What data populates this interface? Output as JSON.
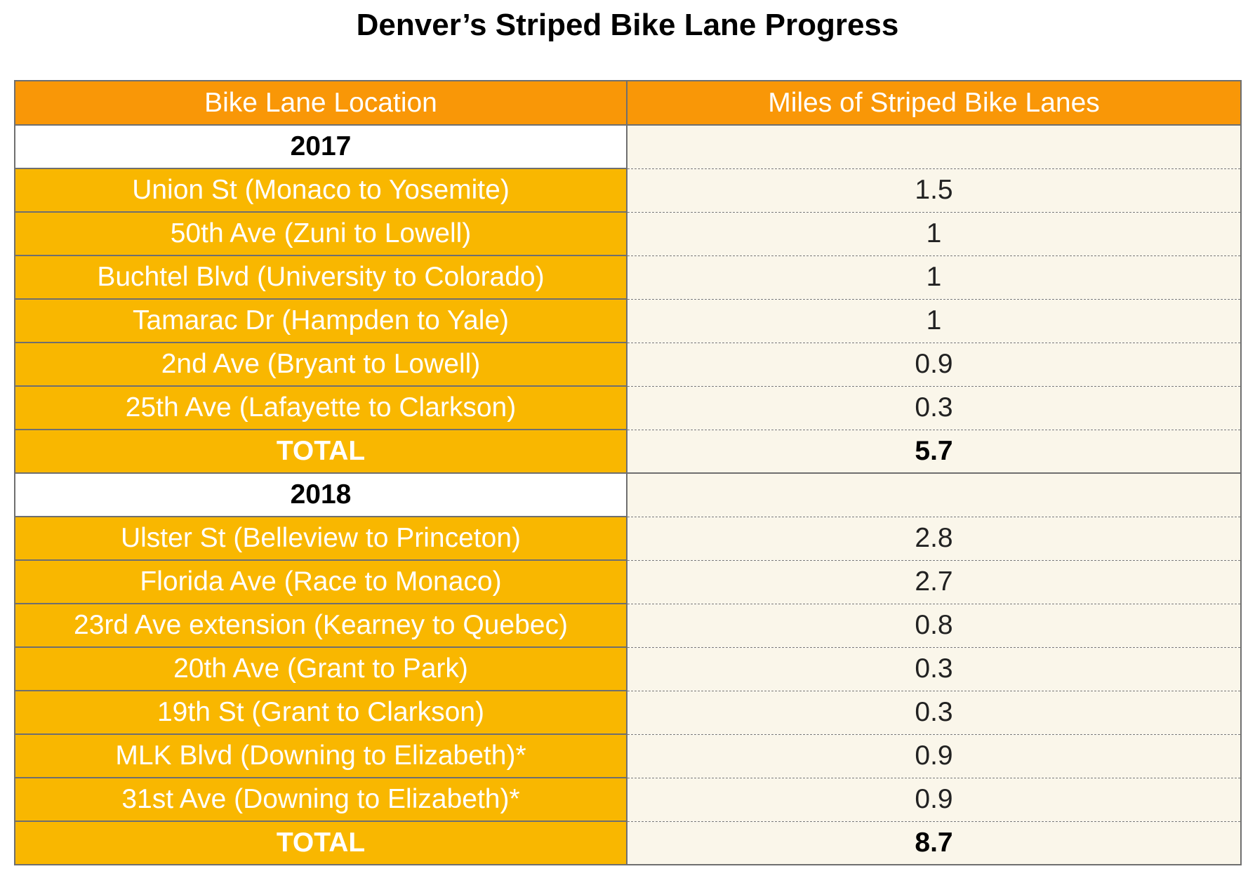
{
  "title": "Denver’s Striped Bike Lane Progress",
  "table": {
    "headers": [
      "Bike Lane Location",
      "Miles of Striped Bike Lanes"
    ],
    "rows": [
      {
        "kind": "year",
        "label": "2017",
        "value": ""
      },
      {
        "kind": "item",
        "label": "Union St (Monaco to Yosemite)",
        "value": "1.5"
      },
      {
        "kind": "item",
        "label": "50th Ave (Zuni to Lowell)",
        "value": "1"
      },
      {
        "kind": "item",
        "label": "Buchtel Blvd (University to Colorado)",
        "value": "1"
      },
      {
        "kind": "item",
        "label": "Tamarac Dr (Hampden to Yale)",
        "value": "1"
      },
      {
        "kind": "item",
        "label": "2nd Ave (Bryant to Lowell)",
        "value": "0.9"
      },
      {
        "kind": "item",
        "label": "25th Ave (Lafayette to Clarkson)",
        "value": "0.3"
      },
      {
        "kind": "total",
        "label": "TOTAL",
        "value": "5.7"
      },
      {
        "kind": "year",
        "label": "2018",
        "value": ""
      },
      {
        "kind": "item",
        "label": "Ulster St (Belleview to Princeton)",
        "value": "2.8"
      },
      {
        "kind": "item",
        "label": "Florida Ave (Race to Monaco)",
        "value": "2.7"
      },
      {
        "kind": "item",
        "label": "23rd Ave extension (Kearney to Quebec)",
        "value": "0.8"
      },
      {
        "kind": "item",
        "label": "20th Ave (Grant to Park)",
        "value": "0.3"
      },
      {
        "kind": "item",
        "label": "19th St (Grant to Clarkson)",
        "value": "0.3"
      },
      {
        "kind": "item",
        "label": "MLK Blvd (Downing to Elizabeth)*",
        "value": "0.9"
      },
      {
        "kind": "item",
        "label": "31st Ave (Downing to Elizabeth)*",
        "value": "0.9"
      },
      {
        "kind": "total",
        "label": "TOTAL",
        "value": "8.7"
      }
    ]
  },
  "colors": {
    "header": "#f99707",
    "location_cell": "#f9b700",
    "value_cell": "#faf6ea",
    "border": "#6f6f6f"
  },
  "chart_data": {
    "type": "table",
    "title": "Denver’s Striped Bike Lane Progress",
    "columns": [
      "Bike Lane Location",
      "Miles of Striped Bike Lanes"
    ],
    "groups": [
      {
        "year": "2017",
        "items": [
          {
            "location": "Union St (Monaco to Yosemite)",
            "miles": 1.5
          },
          {
            "location": "50th Ave (Zuni to Lowell)",
            "miles": 1
          },
          {
            "location": "Buchtel Blvd (University to Colorado)",
            "miles": 1
          },
          {
            "location": "Tamarac Dr (Hampden to Yale)",
            "miles": 1
          },
          {
            "location": "2nd Ave (Bryant to Lowell)",
            "miles": 0.9
          },
          {
            "location": "25th Ave (Lafayette to Clarkson)",
            "miles": 0.3
          }
        ],
        "total": 5.7
      },
      {
        "year": "2018",
        "items": [
          {
            "location": "Ulster St (Belleview to Princeton)",
            "miles": 2.8
          },
          {
            "location": "Florida Ave (Race to Monaco)",
            "miles": 2.7
          },
          {
            "location": "23rd Ave extension (Kearney to Quebec)",
            "miles": 0.8
          },
          {
            "location": "20th Ave (Grant to Park)",
            "miles": 0.3
          },
          {
            "location": "19th St (Grant to Clarkson)",
            "miles": 0.3
          },
          {
            "location": "MLK Blvd (Downing to Elizabeth)*",
            "miles": 0.9
          },
          {
            "location": "31st Ave (Downing to Elizabeth)*",
            "miles": 0.9
          }
        ],
        "total": 8.7
      }
    ]
  }
}
